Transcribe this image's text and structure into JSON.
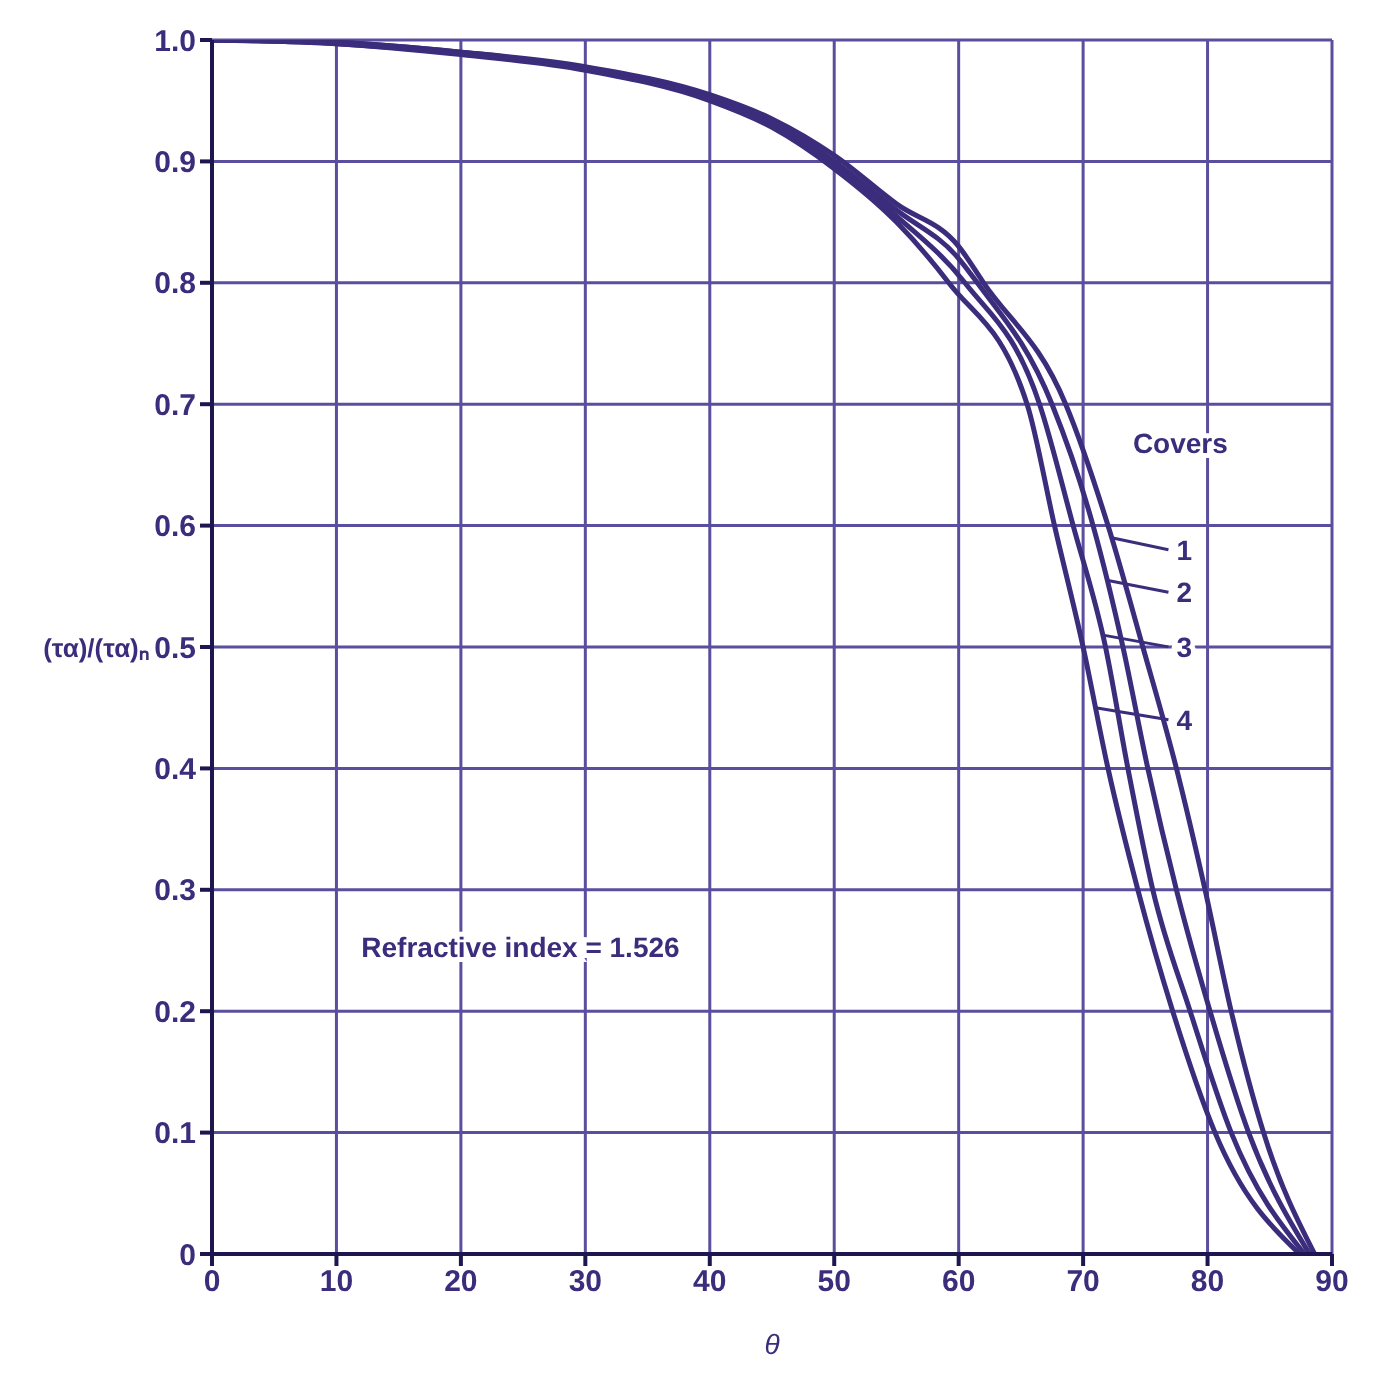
{
  "chart_data": {
    "type": "line",
    "xlabel": "θ",
    "ylabel": "(τα)/(τα)ₙ",
    "xlim": [
      0,
      90
    ],
    "xticks": [
      0,
      10,
      20,
      30,
      40,
      50,
      60,
      70,
      80,
      90
    ],
    "ylim": [
      0,
      1
    ],
    "yticks": [
      0,
      0.1,
      0.2,
      0.3,
      0.4,
      0.5,
      0.6,
      0.7,
      0.8,
      0.9,
      {
        "value": 1,
        "label": "1.0"
      }
    ],
    "grid": true,
    "legend": false,
    "marker": "none",
    "line_style": "solid",
    "series": [
      {
        "color": "#3b2d7c",
        "x": [
          0,
          10,
          20,
          30,
          40,
          45,
          50,
          55,
          60,
          62,
          68.6,
          72,
          74.8,
          77.5,
          79.8,
          81.9,
          84.5,
          88.6
        ],
        "values": [
          1,
          0.998,
          0.99,
          0.978,
          0.955,
          0.935,
          0.905,
          0.865,
          0.83,
          0.8,
          0.7,
          0.6,
          0.5,
          0.4,
          0.3,
          0.2,
          0.1,
          0
        ]
      },
      {
        "color": "#3b2d7c",
        "x": [
          0,
          10,
          20,
          30,
          40,
          45,
          50,
          55,
          60,
          61.5,
          67.5,
          70.8,
          73.2,
          75.2,
          77.5,
          80.2,
          83.3,
          88.2
        ],
        "values": [
          1,
          0.998,
          0.99,
          0.977,
          0.953,
          0.933,
          0.9,
          0.86,
          0.82,
          0.8,
          0.7,
          0.6,
          0.5,
          0.4,
          0.3,
          0.2,
          0.1,
          0
        ]
      },
      {
        "color": "#3b2d7c",
        "x": [
          0,
          10,
          20,
          30,
          40,
          45,
          50,
          55,
          60.5,
          66.5,
          69.2,
          71.8,
          73.6,
          75.6,
          78.6,
          81.9,
          87.8
        ],
        "values": [
          1,
          0.997,
          0.989,
          0.976,
          0.951,
          0.93,
          0.897,
          0.855,
          0.8,
          0.7,
          0.6,
          0.5,
          0.4,
          0.3,
          0.2,
          0.1,
          0
        ]
      },
      {
        "color": "#3b2d7c",
        "x": [
          0,
          10,
          20,
          30,
          40,
          45,
          50,
          55,
          59.2,
          65.5,
          67.7,
          70,
          72,
          74.4,
          77.2,
          80.6,
          87.4
        ],
        "values": [
          1,
          0.997,
          0.988,
          0.975,
          0.95,
          0.928,
          0.894,
          0.85,
          0.8,
          0.7,
          0.6,
          0.5,
          0.4,
          0.3,
          0.2,
          0.1,
          0
        ]
      }
    ],
    "annotations": [
      "Covers",
      "Refractive index = 1.526",
      {
        "text": "1",
        "x": 72.3,
        "y": 0.59
      },
      {
        "text": "2",
        "x": 71.9,
        "y": 0.555
      },
      {
        "text": "3",
        "x": 71.5,
        "y": 0.51
      },
      {
        "text": "4",
        "x": 71,
        "y": 0.45
      }
    ]
  }
}
